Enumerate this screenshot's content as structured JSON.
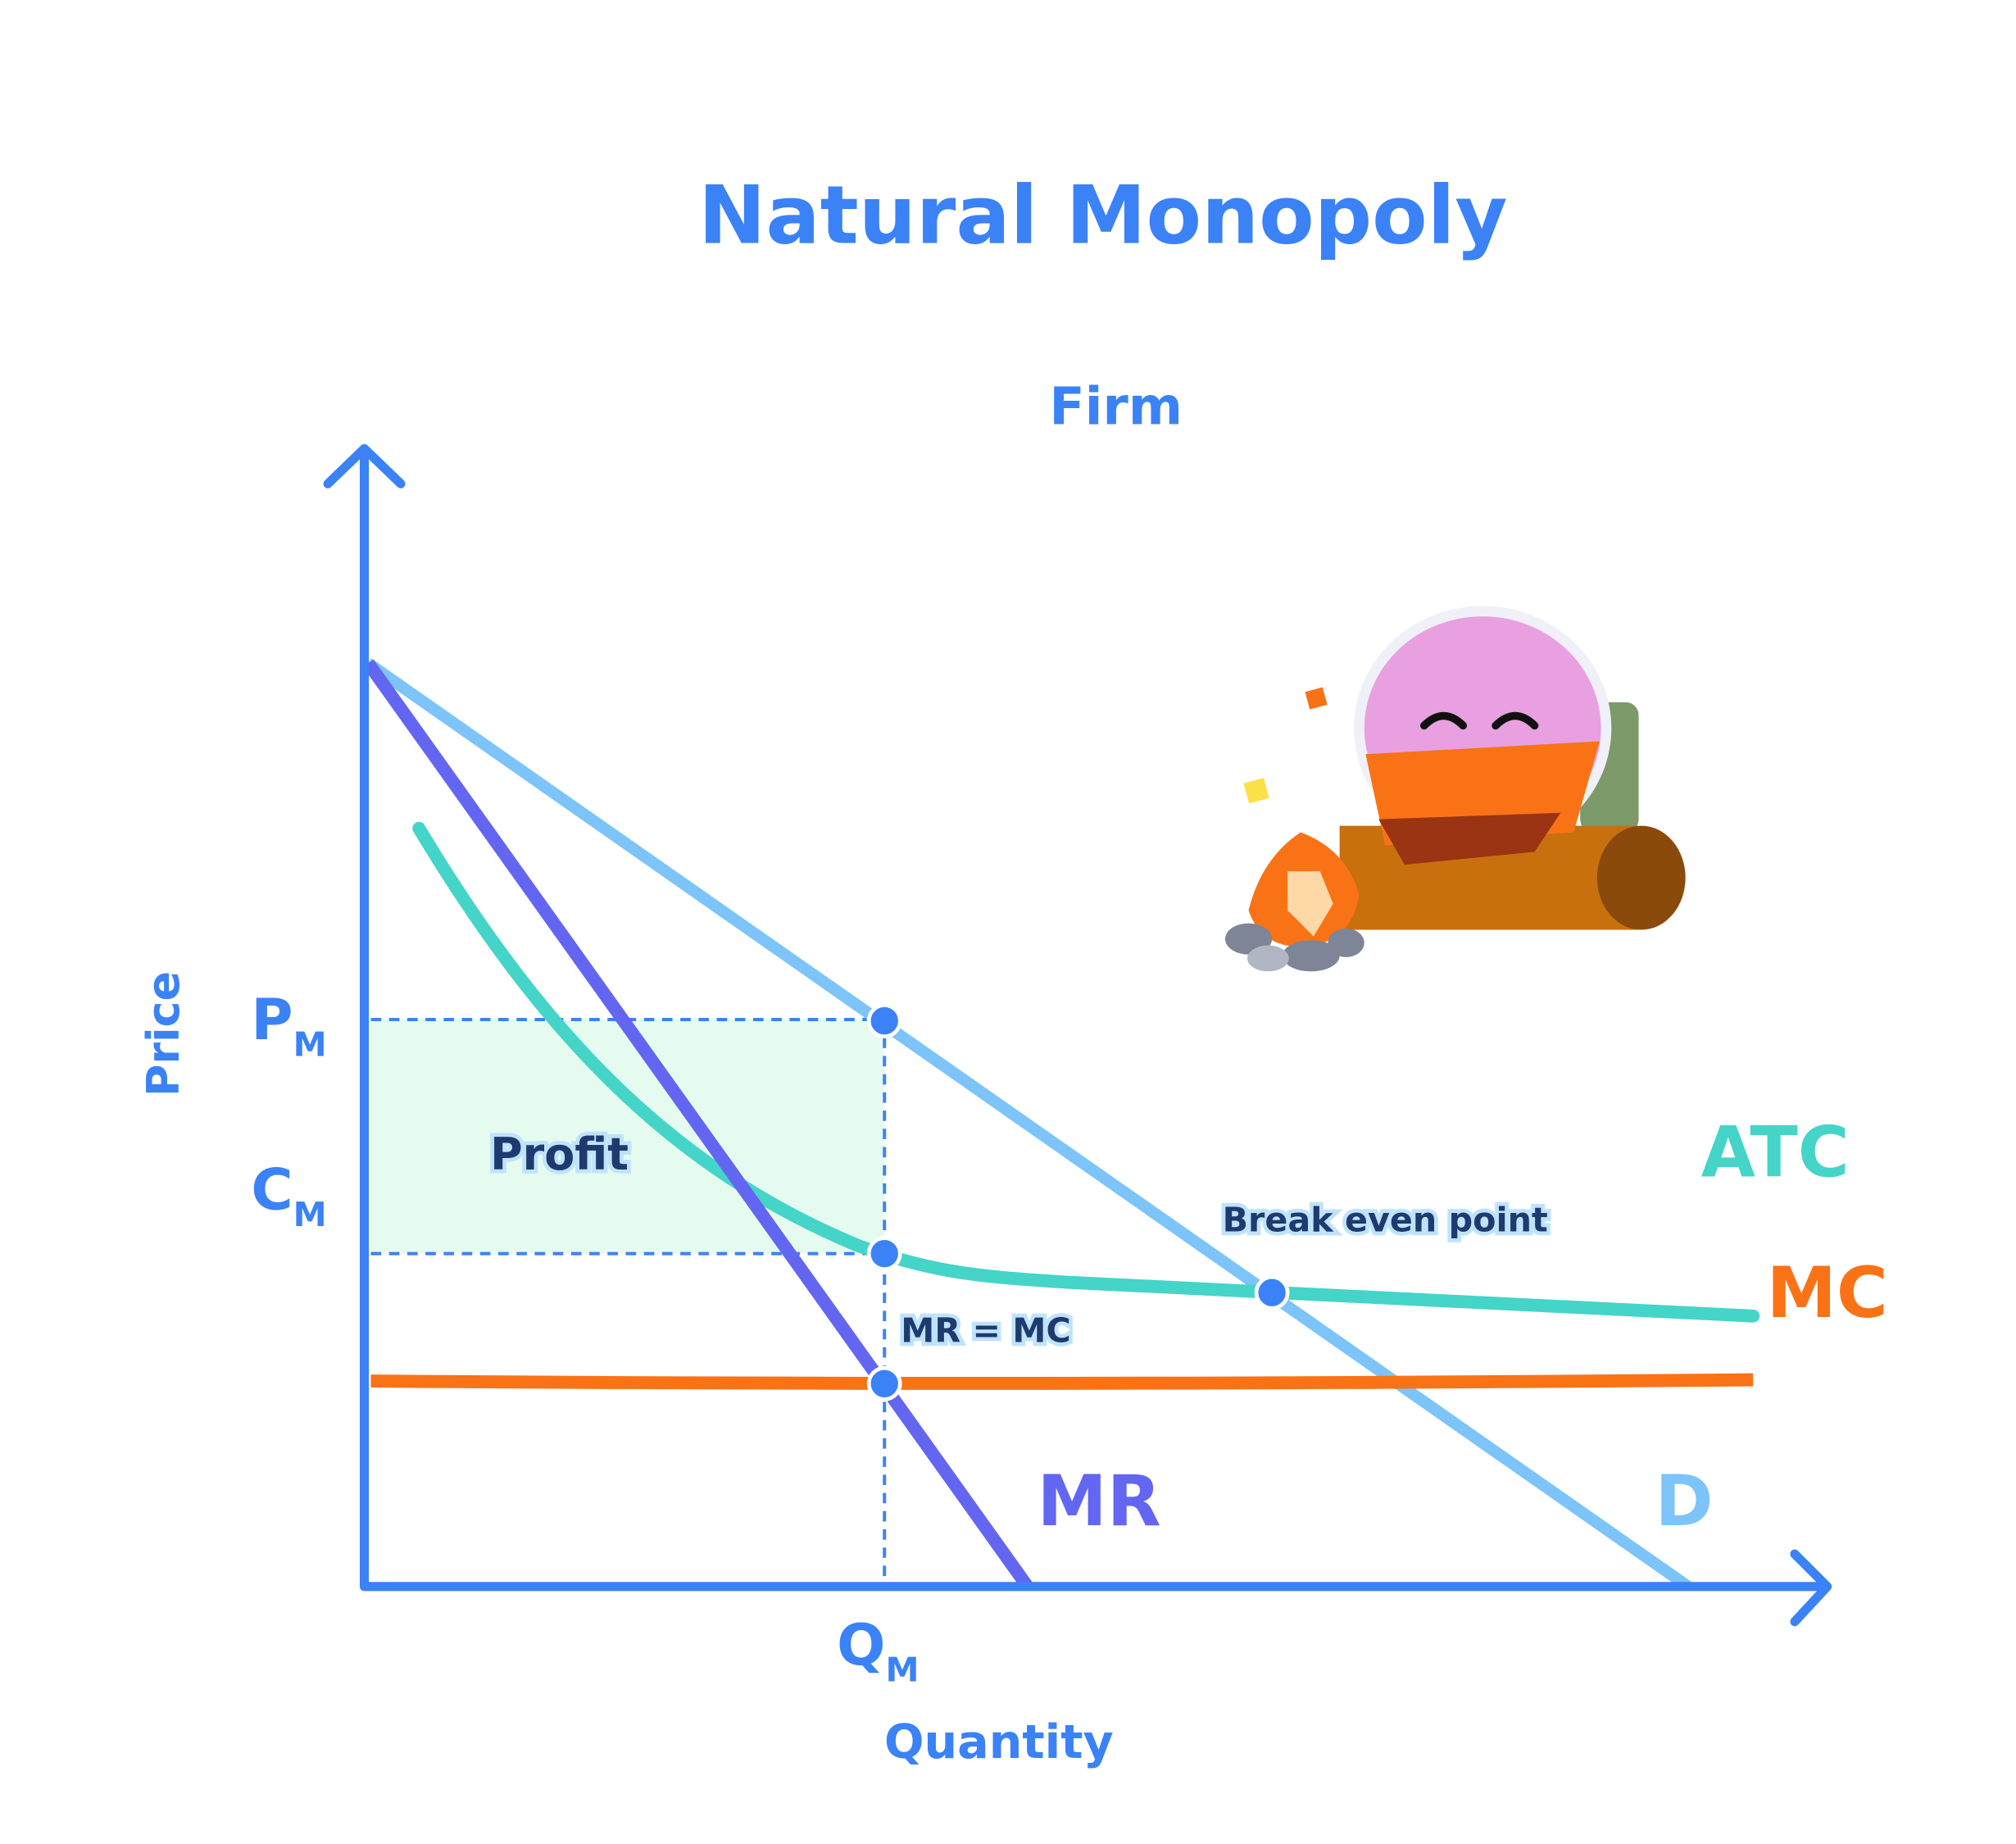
{
  "header": {
    "title": "Natural Monopoly",
    "subtitle": "Firm"
  },
  "axes": {
    "y_label": "Price",
    "x_label": "Quantity"
  },
  "axis_labels": {
    "price": {
      "main": "P",
      "sub": "M"
    },
    "cost": {
      "main": "C",
      "sub": "M"
    },
    "quantity": {
      "main": "Q",
      "sub": "M"
    }
  },
  "curves": {
    "atc": "ATC",
    "mc": "MC",
    "mr": "MR",
    "demand": "D"
  },
  "annotations": {
    "profit": "Profit",
    "break_even": "Break even point",
    "mr_mc": "MR = MC"
  }
}
